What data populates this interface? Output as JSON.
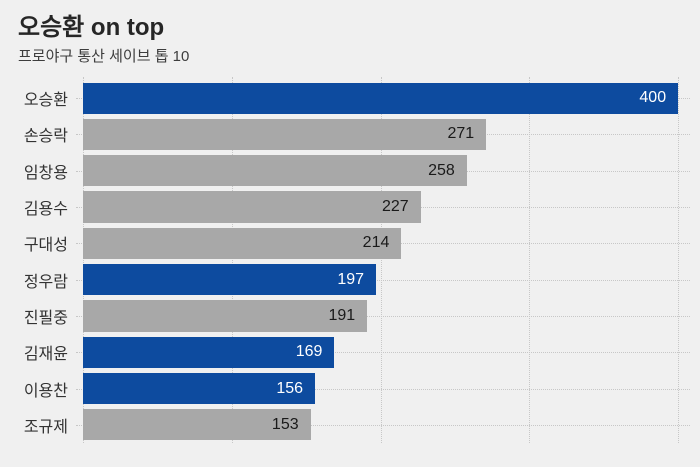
{
  "header": {
    "title": "오승환 on top",
    "subtitle": "프로야구 통산 세이브 톱 10"
  },
  "colors": {
    "background": "#f0f0f0",
    "highlight_bar": "#0d4b9f",
    "default_bar": "#a8a8a8",
    "gridline": "#c7c7c7",
    "title_text": "#262626",
    "subtitle_text": "#3d3d3d",
    "category_text": "#333333",
    "value_on_gray": "#1a1a1a",
    "value_on_blue": "#ffffff"
  },
  "chart_data": {
    "type": "bar",
    "orientation": "horizontal",
    "title": "오승환 on top",
    "subtitle": "프로야구 통산 세이브 톱 10",
    "categories": [
      "오승환",
      "손승락",
      "임창용",
      "김용수",
      "구대성",
      "정우람",
      "진필중",
      "김재윤",
      "이용찬",
      "조규제"
    ],
    "values": [
      400,
      271,
      258,
      227,
      214,
      197,
      191,
      169,
      156,
      153
    ],
    "bars": [
      {
        "label": "오승환",
        "value": 400,
        "highlight": true
      },
      {
        "label": "손승락",
        "value": 271,
        "highlight": false
      },
      {
        "label": "임창용",
        "value": 258,
        "highlight": false
      },
      {
        "label": "김용수",
        "value": 227,
        "highlight": false
      },
      {
        "label": "구대성",
        "value": 214,
        "highlight": false
      },
      {
        "label": "정우람",
        "value": 197,
        "highlight": true
      },
      {
        "label": "진필중",
        "value": 191,
        "highlight": false
      },
      {
        "label": "김재윤",
        "value": 169,
        "highlight": true
      },
      {
        "label": "이용찬",
        "value": 156,
        "highlight": true
      },
      {
        "label": "조규제",
        "value": 153,
        "highlight": false
      }
    ],
    "xlim": [
      0,
      408
    ],
    "gridlines_x": [
      0,
      100,
      200,
      300,
      400
    ],
    "grid_style": "dotted",
    "value_labels": "inside-end",
    "legend": "none",
    "xlabel": "",
    "ylabel": ""
  }
}
